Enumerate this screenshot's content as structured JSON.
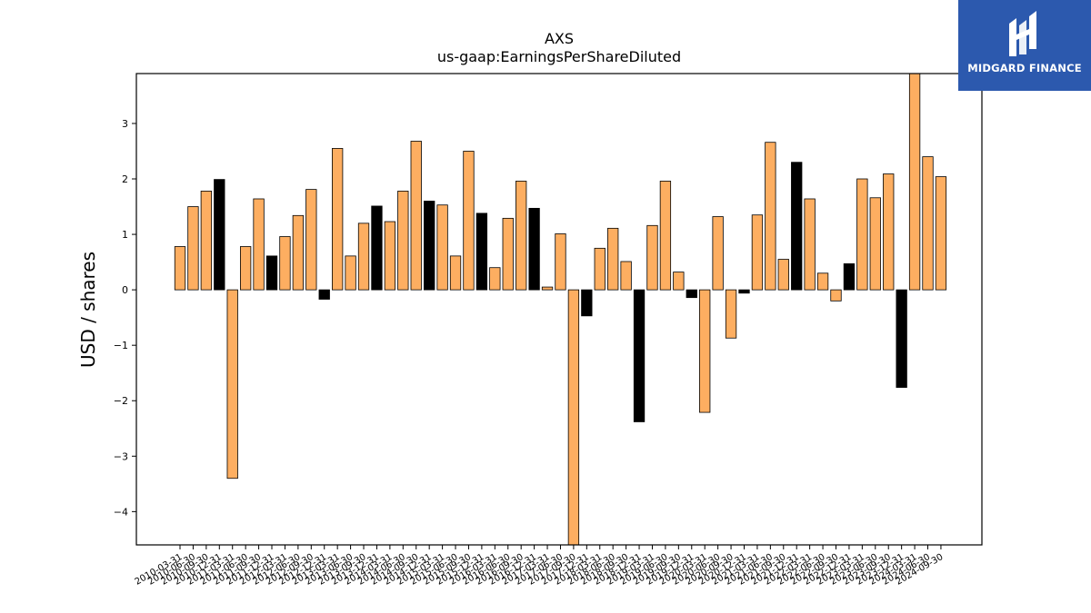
{
  "brand": {
    "name": "MIDGARD FINANCE",
    "logo_icon": "midgard-logo-icon",
    "background": "#2c59ae",
    "text_color": "#ffffff"
  },
  "chart_data": {
    "type": "bar",
    "title": "AXS",
    "subtitle": "us-gaap:EarningsPerShareDiluted",
    "xlabel": "",
    "ylabel": "USD / shares",
    "ylim": [
      -4.6,
      3.9
    ],
    "yticks": [
      -4,
      -3,
      -2,
      -1,
      0,
      1,
      2,
      3
    ],
    "ytick_labels": [
      "−4",
      "−3",
      "−2",
      "−1",
      "0",
      "1",
      "2",
      "3"
    ],
    "grid": false,
    "colors": {
      "quarter": "#fdae61",
      "annual": "#000000",
      "edge": "#000000"
    },
    "categories": [
      "2010-03-31",
      "2010-06-30",
      "2010-09-30",
      "2010-12-31",
      "2011-03-31",
      "2011-06-30",
      "2011-09-30",
      "2011-12-31",
      "2012-03-31",
      "2012-06-30",
      "2012-09-30",
      "2012-12-31",
      "2013-03-31",
      "2013-06-30",
      "2013-09-30",
      "2013-12-31",
      "2014-03-31",
      "2014-06-30",
      "2014-09-30",
      "2014-12-31",
      "2015-03-31",
      "2015-06-30",
      "2015-09-30",
      "2015-12-31",
      "2016-03-31",
      "2016-06-30",
      "2016-09-30",
      "2016-12-31",
      "2017-03-31",
      "2017-06-30",
      "2017-09-30",
      "2017-12-31",
      "2018-03-31",
      "2018-06-30",
      "2018-09-30",
      "2018-12-31",
      "2019-03-31",
      "2019-06-30",
      "2019-09-30",
      "2019-12-31",
      "2020-03-31",
      "2020-06-30",
      "2020-09-30",
      "2020-12-31",
      "2021-03-31",
      "2021-06-30",
      "2021-09-30",
      "2021-12-31",
      "2022-03-31",
      "2022-06-30",
      "2022-09-30",
      "2022-12-31",
      "2023-03-31",
      "2023-06-30",
      "2023-09-30",
      "2023-12-31",
      "2024-03-31",
      "2024-06-30",
      "2024-09-30"
    ],
    "values": [
      0.78,
      1.5,
      1.78,
      1.99,
      -3.4,
      0.78,
      1.64,
      0.61,
      0.96,
      1.34,
      1.81,
      -0.17,
      2.55,
      0.61,
      1.2,
      1.51,
      1.23,
      1.78,
      2.68,
      1.6,
      1.53,
      0.61,
      2.5,
      1.38,
      0.4,
      1.29,
      1.96,
      1.47,
      0.05,
      1.01,
      -4.6,
      -0.47,
      0.75,
      1.11,
      0.51,
      -2.38,
      1.16,
      1.96,
      0.32,
      -0.14,
      -2.21,
      1.32,
      -0.87,
      -0.06,
      1.35,
      2.66,
      0.55,
      2.3,
      1.64,
      0.3,
      -0.2,
      0.47,
      2.0,
      1.66,
      2.09,
      -1.76,
      3.9,
      2.4,
      2.04
    ],
    "annual_flags": [
      false,
      false,
      false,
      true,
      false,
      false,
      false,
      true,
      false,
      false,
      false,
      true,
      false,
      false,
      false,
      true,
      false,
      false,
      false,
      true,
      false,
      false,
      false,
      true,
      false,
      false,
      false,
      true,
      false,
      false,
      false,
      true,
      false,
      false,
      false,
      true,
      false,
      false,
      false,
      true,
      false,
      false,
      false,
      true,
      false,
      false,
      false,
      true,
      false,
      false,
      false,
      true,
      false,
      false,
      false,
      true,
      false,
      false,
      false
    ]
  }
}
